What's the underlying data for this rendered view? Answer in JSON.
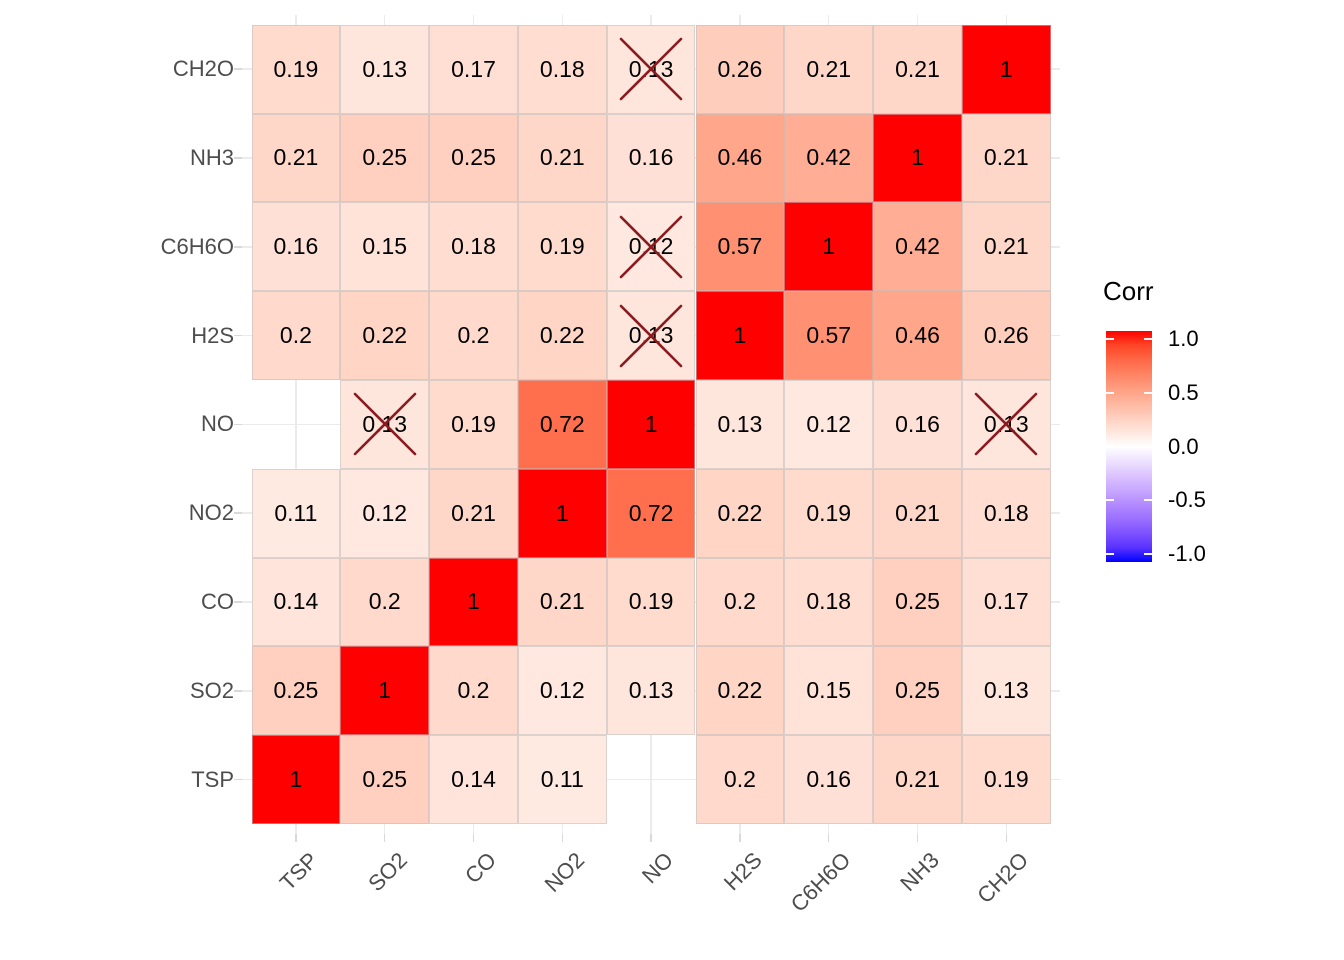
{
  "chart_data": {
    "type": "heatmap",
    "subtype": "correlation-matrix",
    "legend": {
      "title": "Corr",
      "tick_labels": [
        "1.0",
        "0.5",
        "0.0",
        "-0.5",
        "-1.0"
      ],
      "tick_values": [
        1,
        0.5,
        0,
        -0.5,
        -1
      ],
      "range": [
        -1,
        1
      ]
    },
    "x_categories": [
      "TSP",
      "SO2",
      "CO",
      "NO2",
      "NO",
      "H2S",
      "C6H6O",
      "NH3",
      "CH2O"
    ],
    "y_categories_top_to_bottom": [
      "CH2O",
      "NH3",
      "C6H6O",
      "H2S",
      "NO",
      "NO2",
      "CO",
      "SO2",
      "TSP"
    ],
    "matrix_rows_top_to_bottom": [
      [
        0.19,
        0.13,
        0.17,
        0.18,
        0.13,
        0.26,
        0.21,
        0.21,
        1
      ],
      [
        0.21,
        0.25,
        0.25,
        0.21,
        0.16,
        0.46,
        0.42,
        1,
        0.21
      ],
      [
        0.16,
        0.15,
        0.18,
        0.19,
        0.12,
        0.57,
        1,
        0.42,
        0.21
      ],
      [
        0.2,
        0.22,
        0.2,
        0.22,
        0.13,
        1,
        0.57,
        0.46,
        0.26
      ],
      [
        null,
        0.13,
        0.19,
        0.72,
        1,
        0.13,
        0.12,
        0.16,
        0.13
      ],
      [
        0.11,
        0.12,
        0.21,
        1,
        0.72,
        0.22,
        0.19,
        0.21,
        0.18
      ],
      [
        0.14,
        0.2,
        1,
        0.21,
        0.19,
        0.2,
        0.18,
        0.25,
        0.17
      ],
      [
        0.25,
        1,
        0.2,
        0.12,
        0.13,
        0.22,
        0.15,
        0.25,
        0.13
      ],
      [
        1,
        0.25,
        0.14,
        0.11,
        null,
        0.2,
        0.16,
        0.21,
        0.19
      ]
    ],
    "crossed_cells": [
      [
        "CH2O",
        "NO"
      ],
      [
        "C6H6O",
        "NO"
      ],
      [
        "H2S",
        "NO"
      ],
      [
        "NO",
        "SO2"
      ],
      [
        "NO",
        "CH2O"
      ]
    ],
    "colors": {
      "high": "#FF0000",
      "mid": "#FFFFFF",
      "low": "#0000FF",
      "cross_mark": "#8B1A1F",
      "axis_label": "#4D4D4D",
      "grid_line": "#EBEBEB",
      "axis_tick": "#D9D9D9",
      "value_text": "#000000",
      "background": "#FFFFFF"
    }
  }
}
